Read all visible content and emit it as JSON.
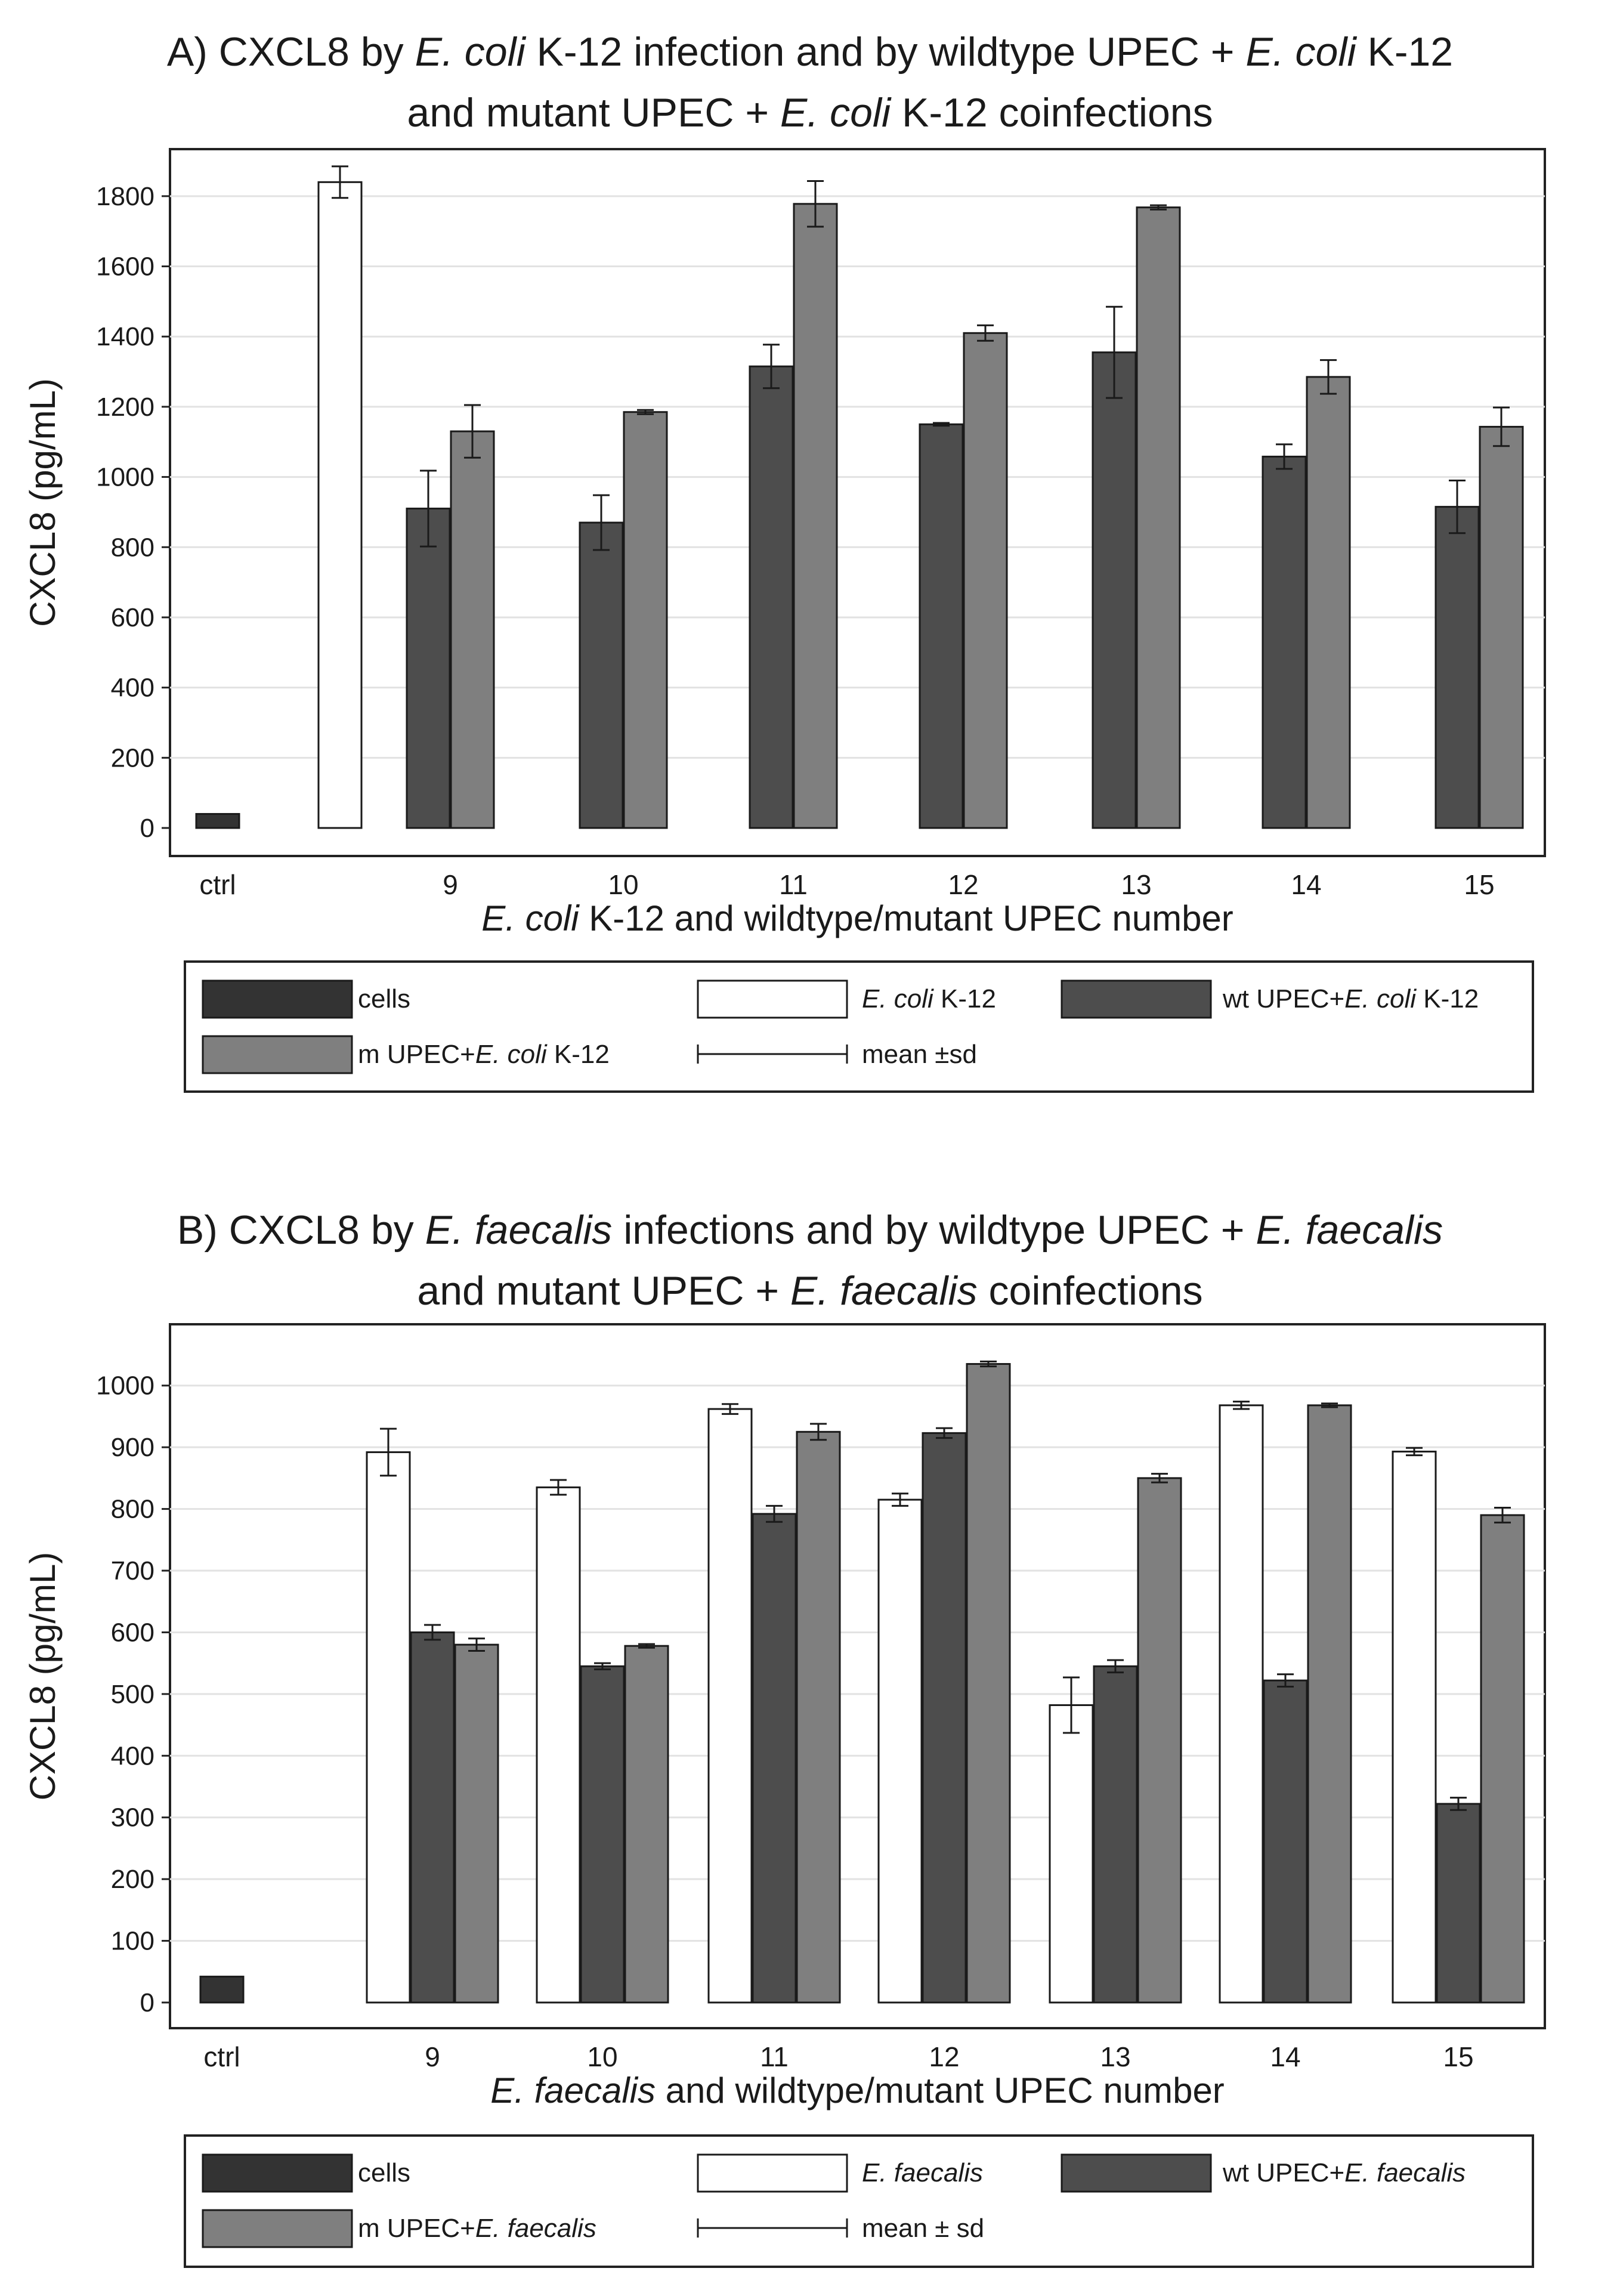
{
  "chart_data": [
    {
      "type": "bar",
      "title_parts": [
        [
          [
            "A) CXCL8 by ",
            false
          ],
          [
            "E. coli",
            true
          ],
          [
            " K-12 infection and by wildtype UPEC + ",
            false
          ],
          [
            "E. coli",
            true
          ],
          [
            " K-12",
            false
          ]
        ],
        [
          [
            "and mutant UPEC + ",
            false
          ],
          [
            "E. coli",
            true
          ],
          [
            " K-12 coinfections",
            false
          ]
        ]
      ],
      "ylabel": "CXCL8 (pg/mL)",
      "xlabel_parts": [
        [
          "E. coli",
          true
        ],
        [
          " K-12 and wildtype/mutant UPEC number",
          false
        ]
      ],
      "ylim": [
        0,
        1900
      ],
      "yticks": [
        0,
        200,
        400,
        600,
        800,
        1000,
        1200,
        1400,
        1600,
        1800
      ],
      "grid": true,
      "categories": [
        "ctrl",
        "9",
        "10",
        "11",
        "12",
        "13",
        "14",
        "15"
      ],
      "series": [
        {
          "name": "cells",
          "color": "#333333",
          "values": [
            40,
            null,
            null,
            null,
            null,
            null,
            null,
            null
          ],
          "sd": [
            0,
            null,
            null,
            null,
            null,
            null,
            null,
            null
          ]
        },
        {
          "name": "E. coli K-12",
          "color": "#ffffff",
          "values": [
            1840,
            null,
            null,
            null,
            null,
            null,
            null,
            null
          ],
          "sd": [
            45,
            null,
            null,
            null,
            null,
            null,
            null,
            null
          ]
        },
        {
          "name": "wt UPEC+E. coli K-12",
          "color": "#4d4d4d",
          "values": [
            null,
            910,
            870,
            1315,
            1150,
            1355,
            1058,
            915
          ],
          "sd": [
            null,
            108,
            78,
            62,
            4,
            130,
            35,
            75
          ]
        },
        {
          "name": "m UPEC+E. coli K-12",
          "color": "#7f7f7f",
          "values": [
            null,
            1130,
            1185,
            1778,
            1410,
            1768,
            1285,
            1143
          ],
          "sd": [
            null,
            75,
            6,
            65,
            22,
            6,
            48,
            55
          ]
        }
      ],
      "legend": {
        "items": [
          [
            [
              "cells",
              false
            ]
          ],
          [
            [
              "E. coli",
              true
            ],
            [
              " K-12",
              false
            ]
          ],
          [
            [
              "wt UPEC+",
              false
            ],
            [
              "E. coli",
              true
            ],
            [
              " K-12",
              false
            ]
          ],
          [
            [
              "m UPEC+",
              false
            ],
            [
              "E. coli",
              true
            ],
            [
              " K-12",
              false
            ]
          ],
          [
            [
              "mean ±sd",
              false
            ]
          ]
        ]
      }
    },
    {
      "type": "bar",
      "title_parts": [
        [
          [
            "B) CXCL8 by ",
            false
          ],
          [
            "E. faecalis",
            true
          ],
          [
            " infections and by wildtype UPEC + ",
            false
          ],
          [
            "E. faecalis",
            true
          ]
        ],
        [
          [
            "and mutant UPEC + ",
            false
          ],
          [
            "E. faecalis",
            true
          ],
          [
            " coinfections",
            false
          ]
        ]
      ],
      "ylabel": "CXCL8 (pg/mL)",
      "xlabel_parts": [
        [
          "E. faecalis",
          true
        ],
        [
          " and wildtype/mutant UPEC number",
          false
        ]
      ],
      "ylim": [
        0,
        1080
      ],
      "yticks": [
        0,
        100,
        200,
        300,
        400,
        500,
        600,
        700,
        800,
        900,
        1000
      ],
      "grid": true,
      "categories": [
        "ctrl",
        "9",
        "10",
        "11",
        "12",
        "13",
        "14",
        "15"
      ],
      "series": [
        {
          "name": "cells",
          "color": "#333333",
          "values": [
            42,
            null,
            null,
            null,
            null,
            null,
            null,
            null
          ],
          "sd": [
            0,
            null,
            null,
            null,
            null,
            null,
            null,
            null
          ]
        },
        {
          "name": "E. faecalis",
          "color": "#ffffff",
          "values": [
            null,
            892,
            835,
            962,
            815,
            482,
            968,
            893
          ],
          "sd": [
            null,
            38,
            12,
            8,
            10,
            45,
            6,
            6
          ]
        },
        {
          "name": "wt UPEC+E. faecalis",
          "color": "#4d4d4d",
          "values": [
            null,
            600,
            545,
            792,
            923,
            545,
            522,
            322
          ],
          "sd": [
            null,
            12,
            5,
            13,
            8,
            10,
            10,
            10
          ]
        },
        {
          "name": "m UPEC+E. faecalis",
          "color": "#7f7f7f",
          "values": [
            null,
            580,
            578,
            925,
            1035,
            850,
            968,
            790
          ],
          "sd": [
            null,
            10,
            3,
            13,
            4,
            7,
            3,
            12
          ]
        }
      ],
      "legend": {
        "items": [
          [
            [
              "cells",
              false
            ]
          ],
          [
            [
              "E. faecalis",
              true
            ]
          ],
          [
            [
              "wt UPEC+",
              false
            ],
            [
              "E. faecalis",
              true
            ]
          ],
          [
            [
              "m UPEC+",
              false
            ],
            [
              "E. faecalis",
              true
            ]
          ],
          [
            [
              "mean ± sd",
              false
            ]
          ]
        ]
      }
    }
  ]
}
